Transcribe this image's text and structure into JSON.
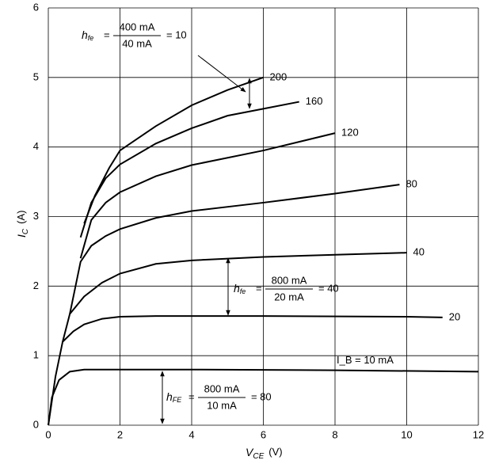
{
  "chart_data": {
    "type": "line",
    "xlabel": {
      "main": "V",
      "sub": "CE",
      "unit": "(V)"
    },
    "ylabel": {
      "main": "I",
      "sub": "C",
      "unit": "(A)"
    },
    "xlim": [
      0,
      12
    ],
    "ylim": [
      0,
      6
    ],
    "xticks": [
      0,
      2,
      4,
      6,
      8,
      10,
      12
    ],
    "yticks": [
      0,
      1,
      2,
      3,
      4,
      5,
      6
    ],
    "grid": true,
    "color": "#000000",
    "series": [
      {
        "name": "I_B = 10 mA",
        "x": [
          0,
          0.1,
          0.3,
          0.6,
          1,
          2,
          4,
          8,
          12
        ],
        "values": [
          0,
          0.4,
          0.65,
          0.77,
          0.8,
          0.8,
          0.8,
          0.79,
          0.77
        ]
      },
      {
        "name": "20",
        "x": [
          0,
          0.2,
          0.4,
          0.7,
          1,
          1.5,
          2,
          3,
          6,
          10,
          11
        ],
        "values": [
          0,
          0.7,
          1.2,
          1.35,
          1.45,
          1.53,
          1.56,
          1.57,
          1.57,
          1.56,
          1.55
        ]
      },
      {
        "name": "40",
        "x": [
          0.4,
          0.6,
          1,
          1.5,
          2,
          3,
          4,
          6,
          8,
          10
        ],
        "values": [
          1.2,
          1.6,
          1.85,
          2.05,
          2.18,
          2.32,
          2.37,
          2.42,
          2.45,
          2.48
        ]
      },
      {
        "name": "80",
        "x": [
          0.6,
          0.9,
          1.2,
          1.6,
          2,
          3,
          4,
          6,
          8,
          9.8
        ],
        "values": [
          1.6,
          2.35,
          2.58,
          2.72,
          2.82,
          2.98,
          3.08,
          3.2,
          3.33,
          3.46
        ]
      },
      {
        "name": "120",
        "x": [
          0.9,
          1.2,
          1.6,
          2,
          3,
          4,
          6,
          8
        ],
        "values": [
          2.4,
          2.95,
          3.2,
          3.35,
          3.58,
          3.74,
          3.95,
          4.2
        ]
      },
      {
        "name": "160",
        "x": [
          0.9,
          1.2,
          1.6,
          2,
          3,
          4,
          5,
          6,
          7
        ],
        "values": [
          2.7,
          3.2,
          3.55,
          3.75,
          4.05,
          4.27,
          4.45,
          4.55,
          4.65
        ]
      },
      {
        "name": "200",
        "x": [
          1,
          1.3,
          1.7,
          2,
          3,
          4,
          5,
          6
        ],
        "values": [
          2.9,
          3.3,
          3.7,
          3.95,
          4.3,
          4.6,
          4.82,
          5.0
        ]
      }
    ],
    "annotations": [
      {
        "h": "h",
        "sub": "fe",
        "eq": "=",
        "num": "400 mA",
        "den": "40 mA",
        "result": "= 10"
      },
      {
        "h": "h",
        "sub": "fe",
        "eq": "=",
        "num": "800 mA",
        "den": "20 mA",
        "result": "= 40"
      },
      {
        "h": "h",
        "sub": "FE",
        "eq": "=",
        "num": "800 mA",
        "den": "10 mA",
        "result": "= 80"
      }
    ]
  }
}
